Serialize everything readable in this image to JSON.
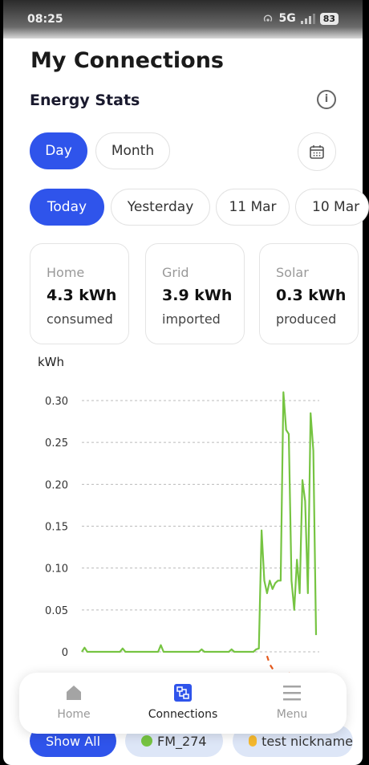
{
  "status_bar": {
    "time": "08:25",
    "network": "5G",
    "battery": "83"
  },
  "page": {
    "title": "My Connections",
    "subtitle": "Energy Stats"
  },
  "period_tabs": {
    "day": "Day",
    "month": "Month",
    "active": "Day"
  },
  "date_chips": [
    "Today",
    "Yesterday",
    "11 Mar",
    "10 Mar"
  ],
  "stats": [
    {
      "label": "Home",
      "value": "4.3 kWh",
      "sub": "consumed"
    },
    {
      "label": "Grid",
      "value": "3.9 kWh",
      "sub": "imported"
    },
    {
      "label": "Solar",
      "value": "0.3 kWh",
      "sub": "produced"
    }
  ],
  "chart_data": {
    "type": "line",
    "ylabel": "kWh",
    "ylim": [
      0,
      0.3
    ],
    "yticks": [
      "0.30",
      "0.25",
      "0.20",
      "0.15",
      "0.10",
      "0.05",
      "0"
    ],
    "grid": true,
    "series": [
      {
        "color": "#76c442",
        "values": [
          0,
          0.005,
          0,
          0,
          0,
          0,
          0,
          0,
          0,
          0,
          0,
          0,
          0,
          0,
          0,
          0.004,
          0,
          0,
          0,
          0,
          0,
          0,
          0,
          0,
          0,
          0,
          0,
          0,
          0,
          0.008,
          0,
          0,
          0,
          0,
          0,
          0,
          0,
          0,
          0,
          0,
          0,
          0,
          0,
          0,
          0.003,
          0,
          0,
          0,
          0,
          0,
          0,
          0,
          0,
          0,
          0,
          0.003,
          0,
          0,
          0,
          0,
          0,
          0,
          0,
          0,
          0.003,
          0.004,
          0.145,
          0.085,
          0.07,
          0.085,
          0.075,
          0.082,
          0.085,
          0.085,
          0.31,
          0.265,
          0.26,
          0.085,
          0.05,
          0.11,
          0.07,
          0.205,
          0.18,
          0.07,
          0.285,
          0.24,
          0.02
        ]
      },
      {
        "color": "#e65a1e",
        "values": [
          null,
          null,
          null,
          null,
          null,
          null,
          null,
          null,
          null,
          null,
          null,
          null,
          null,
          null,
          null,
          null,
          null,
          null,
          null,
          null,
          null,
          null,
          null,
          null,
          null,
          null,
          null,
          null,
          null,
          null,
          null,
          null,
          null,
          null,
          null,
          null,
          null,
          null,
          null,
          null,
          null,
          null,
          null,
          null,
          null,
          null,
          null,
          null,
          null,
          null,
          null,
          null,
          null,
          null,
          null,
          null,
          null,
          null,
          null,
          null,
          null,
          null,
          null,
          null,
          null,
          null,
          null,
          null,
          -0.005,
          -0.015,
          -0.02,
          -0.025,
          null,
          null,
          null,
          null,
          -0.025,
          -0.03,
          null,
          null,
          null,
          null,
          null,
          null,
          null,
          null,
          null
        ]
      }
    ]
  },
  "nav": {
    "home": "Home",
    "connections": "Connections",
    "menu": "Menu",
    "active": "Connections"
  },
  "filters": {
    "show_all": "Show All",
    "items": [
      {
        "label": "FM_274",
        "color": "#76c442"
      },
      {
        "label": "test nickname",
        "color": "#f5b82e"
      }
    ]
  },
  "colors": {
    "accent": "#2f54eb",
    "solar_line": "#76c442",
    "export_line": "#e65a1e"
  }
}
